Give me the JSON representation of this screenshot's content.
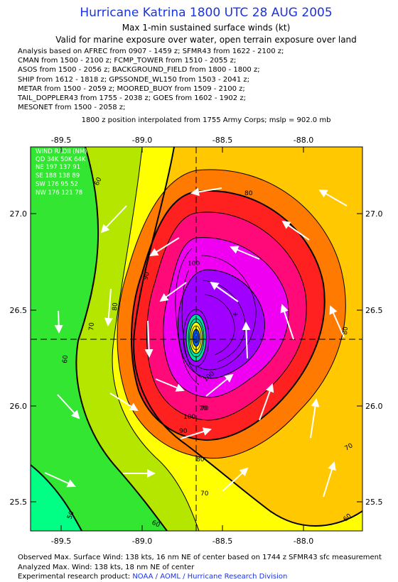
{
  "header": {
    "title": "Hurricane Katrina 1800 UTC 28 AUG 2005",
    "subtitle1": "Max 1-min sustained surface winds (kt)",
    "subtitle2": "Valid for marine exposure over water, open terrain exposure over land"
  },
  "analysis_sources": [
    "Analysis based on  AFREC from 0907 - 1459 z;  SFMR43 from 1622 - 2100 z;",
    "CMAN from 1500 - 2100 z;  FCMP_TOWER from 1510 - 2055 z;",
    "ASOS from 1500 - 2056 z;  BACKGROUND_FIELD from 1800 - 1800 z;",
    "SHIP from 1612 - 1818 z;  GPSSONDE_WL150 from 1503 - 2041 z;",
    "METAR from 1500 - 2059 z;  MOORED_BUOY from 1509 - 2100 z;",
    "TAIL_DOPPLER43 from 1755 - 2038 z;  GOES from 1602 - 1902 z;",
    "MESONET from 1500 - 2058 z;"
  ],
  "center_note": "1800 z position interpolated from 1755 Army Corps; mslp = 902.0 mb",
  "map": {
    "x_ticks": [
      "-89.5",
      "-89.0",
      "-88.5",
      "-88.0"
    ],
    "y_ticks": [
      "27.0",
      "26.5",
      "26.0",
      "25.5"
    ],
    "contour_labels": [
      "50",
      "60",
      "60",
      "60",
      "60",
      "70",
      "70",
      "70",
      "70",
      "80",
      "80",
      "80",
      "80",
      "90",
      "90",
      "100",
      "100",
      "100",
      "70"
    ],
    "wind_radii": {
      "title": "WIND RADII (NM)",
      "header": "QD 34K 50K 64K",
      "rows": [
        "NE 197 137 91",
        "SE 188 138 89",
        "SW 176  95  52",
        "NW 176 121  78"
      ]
    },
    "colors": {
      "c40": "#00ff84",
      "c50": "#32e632",
      "c60": "#b4e600",
      "c70": "#ffff00",
      "c80": "#ffc800",
      "c90": "#ff7a00",
      "c100": "#ff2020",
      "c110": "#ff0a78",
      "c120": "#f000f0",
      "c130": "#a000ff"
    }
  },
  "footer": {
    "observed": "Observed Max. Surface Wind: 138 kts, 16 nm NE of center based on 1744 z SFMR43 sfc measurement",
    "analyzed": "Analyzed Max. Wind: 138 kts, 18 nm NE of center",
    "credit_prefix": "Experimental research product:",
    "credit_link": "NOAA / AOML / Hurricane Research Division"
  }
}
